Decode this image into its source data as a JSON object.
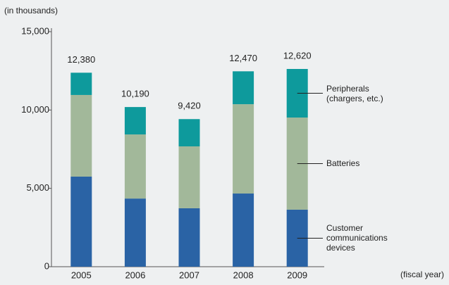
{
  "chart_data": {
    "type": "stacked_bar",
    "y_axis_label": "(in thousands)",
    "x_axis_label": "(fiscal year)",
    "categories": [
      "2005",
      "2006",
      "2007",
      "2008",
      "2009"
    ],
    "series": [
      {
        "name": "Customer communications devices",
        "color": "#2a63a5",
        "values": [
          5750,
          4350,
          3730,
          4670,
          3640
        ]
      },
      {
        "name": "Batteries",
        "color": "#a2b89a",
        "values": [
          5210,
          4090,
          3950,
          5700,
          5880
        ]
      },
      {
        "name": "Peripherals (chargers, etc.)",
        "color": "#0e9a9c",
        "values": [
          1420,
          1750,
          1740,
          2100,
          3100
        ]
      }
    ],
    "totals": [
      12380,
      10190,
      9420,
      12470,
      12620
    ],
    "total_labels": [
      "12,380",
      "10,190",
      "9,420",
      "12,470",
      "12,620"
    ],
    "ylim": [
      0,
      15000
    ],
    "yticks": [
      0,
      {
        "value": 5000,
        "label": "5,000"
      },
      {
        "value": 10000,
        "label": "10,000"
      },
      {
        "value": 15000,
        "label": "15,000"
      }
    ]
  }
}
